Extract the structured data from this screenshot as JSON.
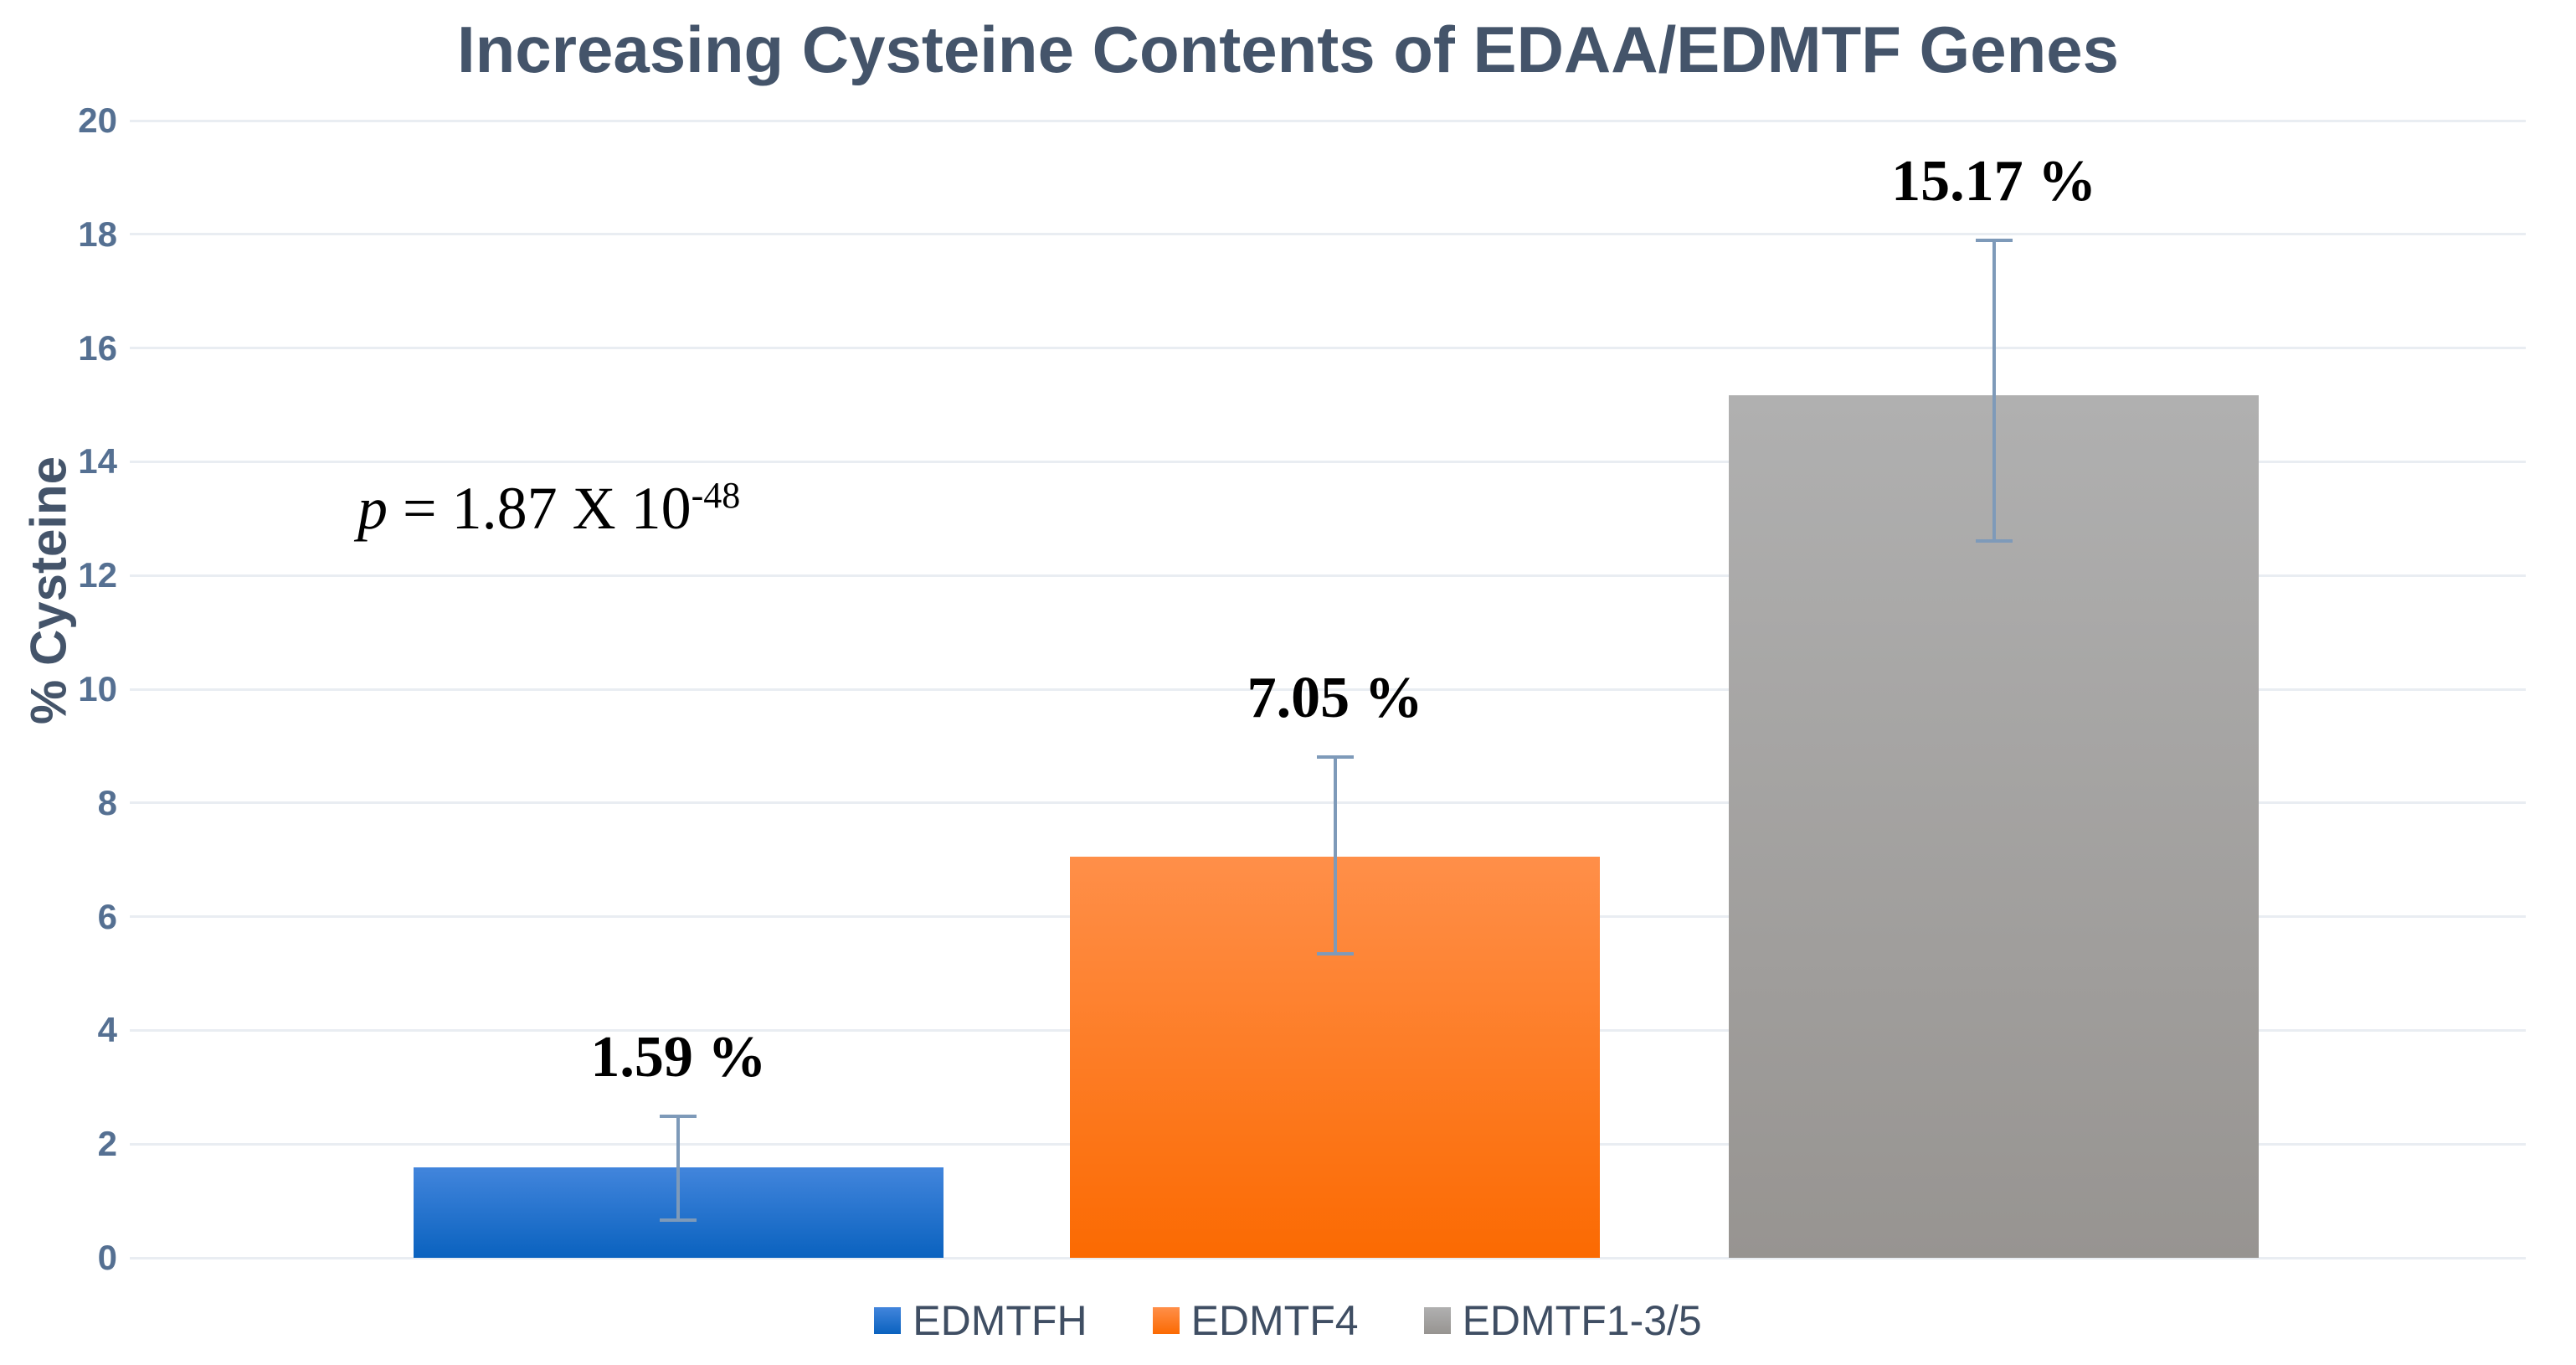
{
  "title": "Increasing Cysteine Contents of EDAA/EDMTF Genes",
  "annotation": {
    "p_italic": "p",
    "body": " = 1.87 X 10",
    "exponent": "-48"
  },
  "chart_data": {
    "type": "bar",
    "title": "Increasing Cysteine Contents of EDAA/EDMTF Genes",
    "xlabel": "",
    "ylabel": "% Cysteine",
    "ylim": [
      0,
      20
    ],
    "ytick_step": 2,
    "grid": true,
    "legend_position": "bottom",
    "categories": [
      "EDMTFH",
      "EDMTF4",
      "EDMTF1-3/5"
    ],
    "series": [
      {
        "name": "EDMTFH",
        "value": 1.59,
        "data_label": "1.59 %",
        "error_low": 0.67,
        "error_high": 2.49,
        "color_top": "#4285dc",
        "color_bottom": "#0a62bf"
      },
      {
        "name": "EDMTF4",
        "value": 7.05,
        "data_label": "7.05 %",
        "error_low": 5.35,
        "error_high": 8.8,
        "color_top": "#ff8f49",
        "color_bottom": "#fb6a02"
      },
      {
        "name": "EDMTF1-3/5",
        "value": 15.17,
        "data_label": "15.17 %",
        "error_low": 12.6,
        "error_high": 17.9,
        "color_top": "#b0b0b0",
        "color_bottom": "#979491"
      }
    ],
    "annotation_text": "p = 1.87 X 10^-48",
    "layout": {
      "bar_centers_frac": [
        0.229,
        0.503,
        0.778
      ],
      "bar_width_frac": 0.221
    }
  },
  "colors": {
    "title_text": "#44546a",
    "tick_text": "#557092",
    "gridline": "#e9edf2",
    "error_bar": "#7e9ab9",
    "data_label": "#000000"
  }
}
